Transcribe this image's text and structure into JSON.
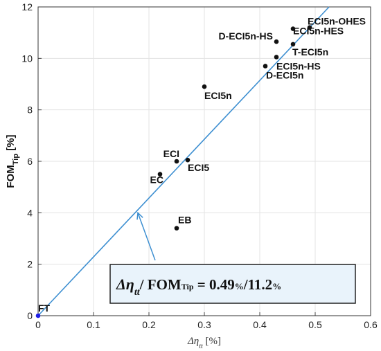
{
  "chart_data": {
    "type": "scatter",
    "xlabel": "Δη",
    "xlabel_sub": "tt",
    "xlabel_unit": " [%]",
    "ylabel": "FOM",
    "ylabel_sub": "Tip",
    "ylabel_unit": " [%]",
    "xlim": [
      0,
      0.6
    ],
    "ylim": [
      0,
      12
    ],
    "xticks": [
      "0",
      "0.1",
      "0.2",
      "0.3",
      "0.4",
      "0.5",
      "0.6"
    ],
    "yticks": [
      "0",
      "2",
      "4",
      "6",
      "8",
      "10",
      "12"
    ],
    "grid": true,
    "points": [
      {
        "label": "FT",
        "x": 0,
        "y": 0,
        "color": "#1f1fe6"
      },
      {
        "label": "EB",
        "x": 0.25,
        "y": 3.4,
        "color": "#111111"
      },
      {
        "label": "EC",
        "x": 0.22,
        "y": 5.5,
        "color": "#111111"
      },
      {
        "label": "ECI",
        "x": 0.25,
        "y": 6.0,
        "color": "#111111"
      },
      {
        "label": "ECI5",
        "x": 0.27,
        "y": 6.05,
        "color": "#111111"
      },
      {
        "label": "ECI5n",
        "x": 0.3,
        "y": 8.9,
        "color": "#111111"
      },
      {
        "label": "D-ECI5n",
        "x": 0.41,
        "y": 9.7,
        "color": "#111111"
      },
      {
        "label": "ECI5n-HS",
        "x": 0.43,
        "y": 10.05,
        "color": "#111111"
      },
      {
        "label": "T-ECI5n",
        "x": 0.46,
        "y": 10.55,
        "color": "#111111"
      },
      {
        "label": "D-ECI5n-HS",
        "x": 0.43,
        "y": 10.65,
        "color": "#111111"
      },
      {
        "label": "ECI5n-HES",
        "x": 0.46,
        "y": 11.15,
        "color": "#111111"
      },
      {
        "label": "ECI5n-OHES",
        "x": 0.49,
        "y": 11.2,
        "color": "#111111"
      }
    ],
    "trendline": {
      "slope": 22.857,
      "intercept": 0,
      "color": "#3d8fd1"
    },
    "annotation": {
      "lhs": "Δη",
      "lhs_sub": "tt",
      "mid": "/ FOM",
      "mid_sub": "Tip",
      "rhs": " = 0.49",
      "rhs_unit1": "%",
      "rhs_sep": "/11.2",
      "rhs_unit2": "%",
      "arrow_target": {
        "x": 0.18,
        "y": 4.0
      },
      "box_fill": "#e9f3fb"
    }
  }
}
